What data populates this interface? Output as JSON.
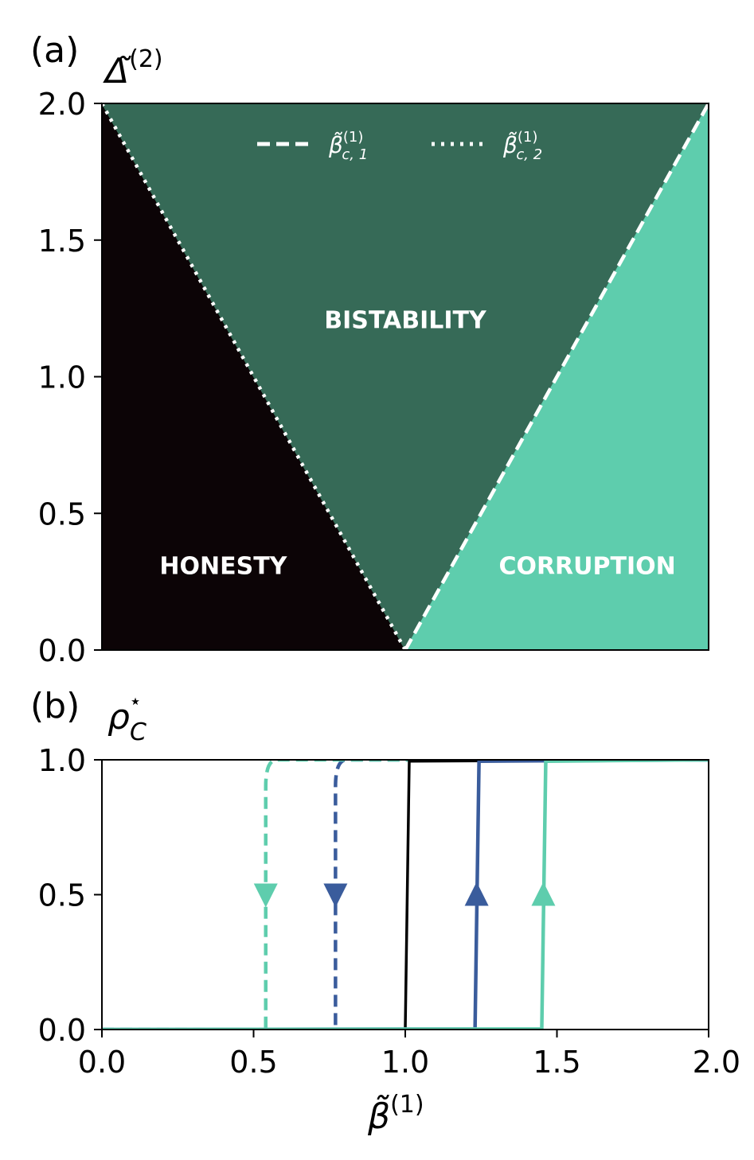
{
  "chart_data": [
    {
      "panel_label": "(a)",
      "type": "area",
      "ylabel_base": "Δ̃",
      "ylabel_sup": "(2)",
      "xlim": [
        0,
        2
      ],
      "ylim": [
        0,
        2
      ],
      "y_ticks": [
        "0.0",
        "0.5",
        "1.0",
        "1.5",
        "2.0"
      ],
      "y_tick_values": [
        0,
        0.5,
        1.0,
        1.5,
        2.0
      ],
      "regions": [
        {
          "name": "HONESTY",
          "color": "#0c0406",
          "polygon": [
            [
              0,
              0
            ],
            [
              1,
              0
            ],
            [
              0,
              2
            ]
          ]
        },
        {
          "name": "BISTABILITY",
          "color": "#366a57",
          "polygon": [
            [
              0,
              2
            ],
            [
              1,
              0
            ],
            [
              2,
              2
            ]
          ]
        },
        {
          "name": "CORRUPTION",
          "color": "#5ecdad",
          "polygon": [
            [
              1,
              0
            ],
            [
              2,
              0
            ],
            [
              2,
              2
            ]
          ]
        }
      ],
      "region_labels": [
        {
          "text": "HONESTY",
          "x": 0.4,
          "y": 0.31
        },
        {
          "text": "BISTABILITY",
          "x": 1.0,
          "y": 1.21
        },
        {
          "text": "CORRUPTION",
          "x": 1.6,
          "y": 0.31
        }
      ],
      "boundaries": [
        {
          "legend_base": "β̃",
          "legend_sup": "(1)",
          "legend_sub": "c, 1",
          "style": "dashed",
          "points": [
            [
              1,
              0
            ],
            [
              2,
              2
            ]
          ]
        },
        {
          "legend_base": "β̃",
          "legend_sup": "(1)",
          "legend_sub": "c, 2",
          "style": "dotted",
          "points": [
            [
              0,
              2
            ],
            [
              1,
              0
            ]
          ]
        }
      ],
      "legend_position": "top-center"
    },
    {
      "panel_label": "(b)",
      "type": "line",
      "ylabel_base": "ρ",
      "ylabel_sub": "C",
      "ylabel_sup": "⋆",
      "xlabel_base": "β̃",
      "xlabel_sup": "(1)",
      "xlim": [
        0,
        2
      ],
      "ylim": [
        0,
        1
      ],
      "x_ticks": [
        "0.0",
        "0.5",
        "1.0",
        "1.5",
        "2.0"
      ],
      "x_tick_values": [
        0,
        0.5,
        1.0,
        1.5,
        2.0
      ],
      "y_ticks": [
        "0.0",
        "0.5",
        "1.0"
      ],
      "y_tick_values": [
        0,
        0.5,
        1.0
      ],
      "series": [
        {
          "color": "#000000",
          "style": "solid",
          "transition": 1.0,
          "arrow": null
        },
        {
          "color": "#3a5c9c",
          "style": "solid",
          "transition": 1.23,
          "arrow": "up"
        },
        {
          "color": "#5ecdad",
          "style": "solid",
          "transition": 1.45,
          "arrow": "up"
        },
        {
          "color": "#3a5c9c",
          "style": "dashed",
          "transition": 0.77,
          "arrow": "down"
        },
        {
          "color": "#5ecdad",
          "style": "dashed",
          "transition": 0.54,
          "arrow": "down"
        }
      ]
    }
  ]
}
